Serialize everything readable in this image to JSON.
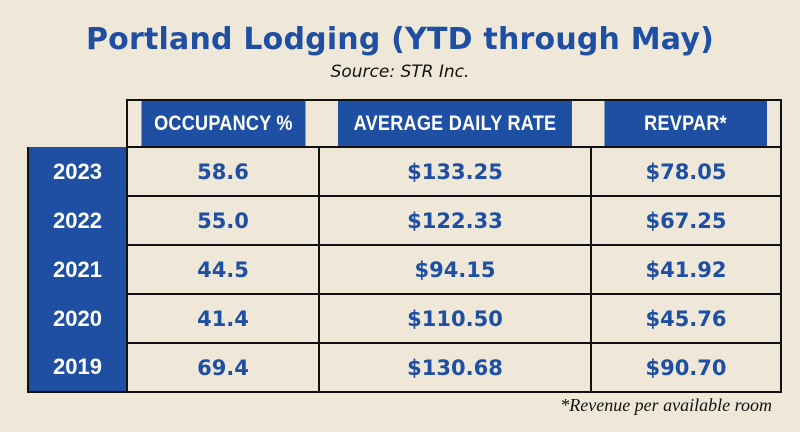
{
  "chart_data": {
    "type": "table",
    "title": "Portland Lodging (YTD through May)",
    "subtitle": "Source: STR Inc.",
    "columns": [
      "OCCUPANCY %",
      "AVERAGE DAILY RATE",
      "REVPAR*"
    ],
    "rows": [
      {
        "year": "2023",
        "occupancy": "58.6",
        "adr": "$133.25",
        "revpar": "$78.05"
      },
      {
        "year": "2022",
        "occupancy": "55.0",
        "adr": "$122.33",
        "revpar": "$67.25"
      },
      {
        "year": "2021",
        "occupancy": "44.5",
        "adr": "$94.15",
        "revpar": "$41.92"
      },
      {
        "year": "2020",
        "occupancy": "41.4",
        "adr": "$110.50",
        "revpar": "$45.76"
      },
      {
        "year": "2019",
        "occupancy": "69.4",
        "adr": "$130.68",
        "revpar": "$90.70"
      }
    ],
    "footnote": "*Revenue per available room"
  }
}
